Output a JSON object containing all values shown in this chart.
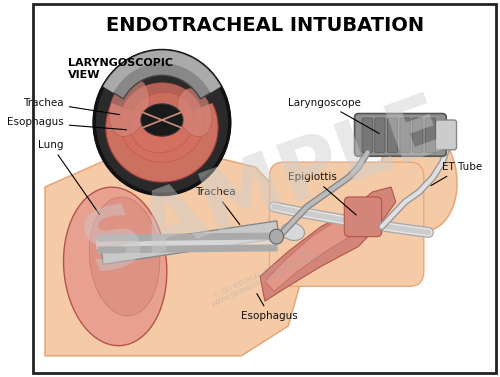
{
  "title": "ENDOTRACHEAL INTUBATION",
  "title_fontsize": 14,
  "title_fontweight": "bold",
  "bg_color": "#ffffff",
  "border_color": "#222222",
  "labels": {
    "laryngoscopic_view": "LARYNGOSCOPIC\nVIEW",
    "trachea_inset": "Trachea",
    "esophagus_inset": "Esophagus",
    "lung": "Lung",
    "trachea_main": "Trachea",
    "epiglottis": "Epiglottis",
    "laryngoscope": "Laryngoscope",
    "et_tube": "ET Tube",
    "esophagus_main": "Esophagus"
  },
  "watermark_text": "SAMPLE",
  "watermark_color": "#cccccc",
  "watermark_alpha": 0.45,
  "skin_color": "#f5cba7",
  "skin_dark": "#e8a87c",
  "tissue_pink": "#d4857a",
  "tissue_dark": "#b5534a",
  "tissue_light": "#e8a090",
  "laryngo_gray": "#888888",
  "laryngo_dark": "#555555",
  "tube_color": "#d4d4d4",
  "inset_bg": "#2a2a2a",
  "label_fontsize": 7.5,
  "label_color": "#111111"
}
